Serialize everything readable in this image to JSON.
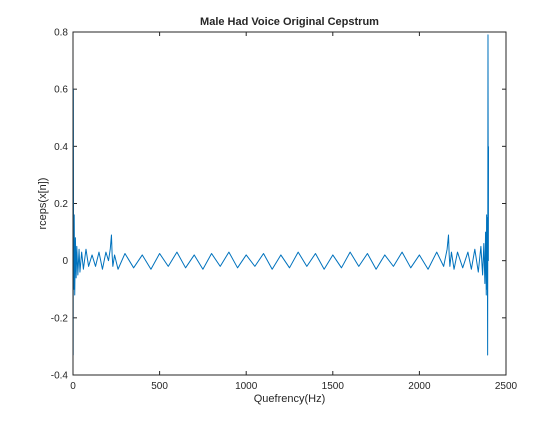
{
  "chart_data": {
    "type": "line",
    "title": "Male Had Voice Original Cepstrum",
    "xlabel": "Quefrency(Hz)",
    "ylabel": "rceps(x[n])",
    "xlim": [
      0,
      2500
    ],
    "ylim": [
      -0.4,
      0.8
    ],
    "xticks": [
      0,
      500,
      1000,
      1500,
      2000,
      2500
    ],
    "yticks": [
      -0.4,
      -0.2,
      0,
      0.2,
      0.4,
      0.6,
      0.8
    ],
    "grid": false,
    "line_color": "#0072BD",
    "series": [
      {
        "x": [
          0,
          1,
          2,
          3,
          5,
          7,
          10,
          14,
          18,
          22,
          28,
          35,
          40,
          50,
          60,
          75,
          90,
          110,
          130,
          150,
          170,
          190,
          205,
          215,
          222,
          226,
          230,
          240,
          260,
          300,
          350,
          400,
          450,
          500,
          550,
          600,
          650,
          700,
          750,
          800,
          850,
          900,
          950,
          1000,
          1050,
          1100,
          1150,
          1200,
          1250,
          1300,
          1350,
          1400,
          1450,
          1500,
          1550,
          1600,
          1650,
          1700,
          1750,
          1800,
          1850,
          1900,
          1950,
          2000,
          2050,
          2100,
          2140,
          2160,
          2168,
          2172,
          2176,
          2185,
          2200,
          2220,
          2250,
          2280,
          2300,
          2320,
          2340,
          2355,
          2365,
          2372,
          2378,
          2382,
          2386,
          2388,
          2390,
          2392,
          2394,
          2395,
          2396,
          2398,
          2399
        ],
        "y": [
          0.8,
          -0.33,
          0.6,
          0.15,
          -0.1,
          0.16,
          -0.12,
          0.08,
          -0.06,
          0.05,
          -0.05,
          0.04,
          -0.04,
          0.03,
          -0.03,
          0.04,
          -0.02,
          0.02,
          -0.02,
          0.03,
          -0.03,
          0.03,
          0.0,
          0.04,
          0.09,
          0.02,
          -0.02,
          0.02,
          -0.03,
          0.025,
          -0.025,
          0.02,
          -0.03,
          0.025,
          -0.02,
          0.03,
          -0.025,
          0.02,
          -0.03,
          0.025,
          -0.02,
          0.03,
          -0.025,
          0.02,
          -0.02,
          0.025,
          -0.03,
          0.02,
          -0.025,
          0.03,
          -0.02,
          0.025,
          -0.03,
          0.02,
          -0.025,
          0.03,
          -0.02,
          0.025,
          -0.03,
          0.02,
          -0.02,
          0.03,
          -0.025,
          0.02,
          -0.03,
          0.03,
          -0.02,
          0.04,
          0.09,
          0.02,
          -0.02,
          0.03,
          -0.03,
          0.03,
          -0.025,
          0.03,
          -0.03,
          0.04,
          -0.04,
          0.05,
          -0.05,
          0.06,
          -0.08,
          0.1,
          -0.12,
          0.16,
          -0.1,
          0.15,
          -0.33,
          0.2,
          0.79,
          0.0,
          0.4
        ]
      }
    ]
  }
}
